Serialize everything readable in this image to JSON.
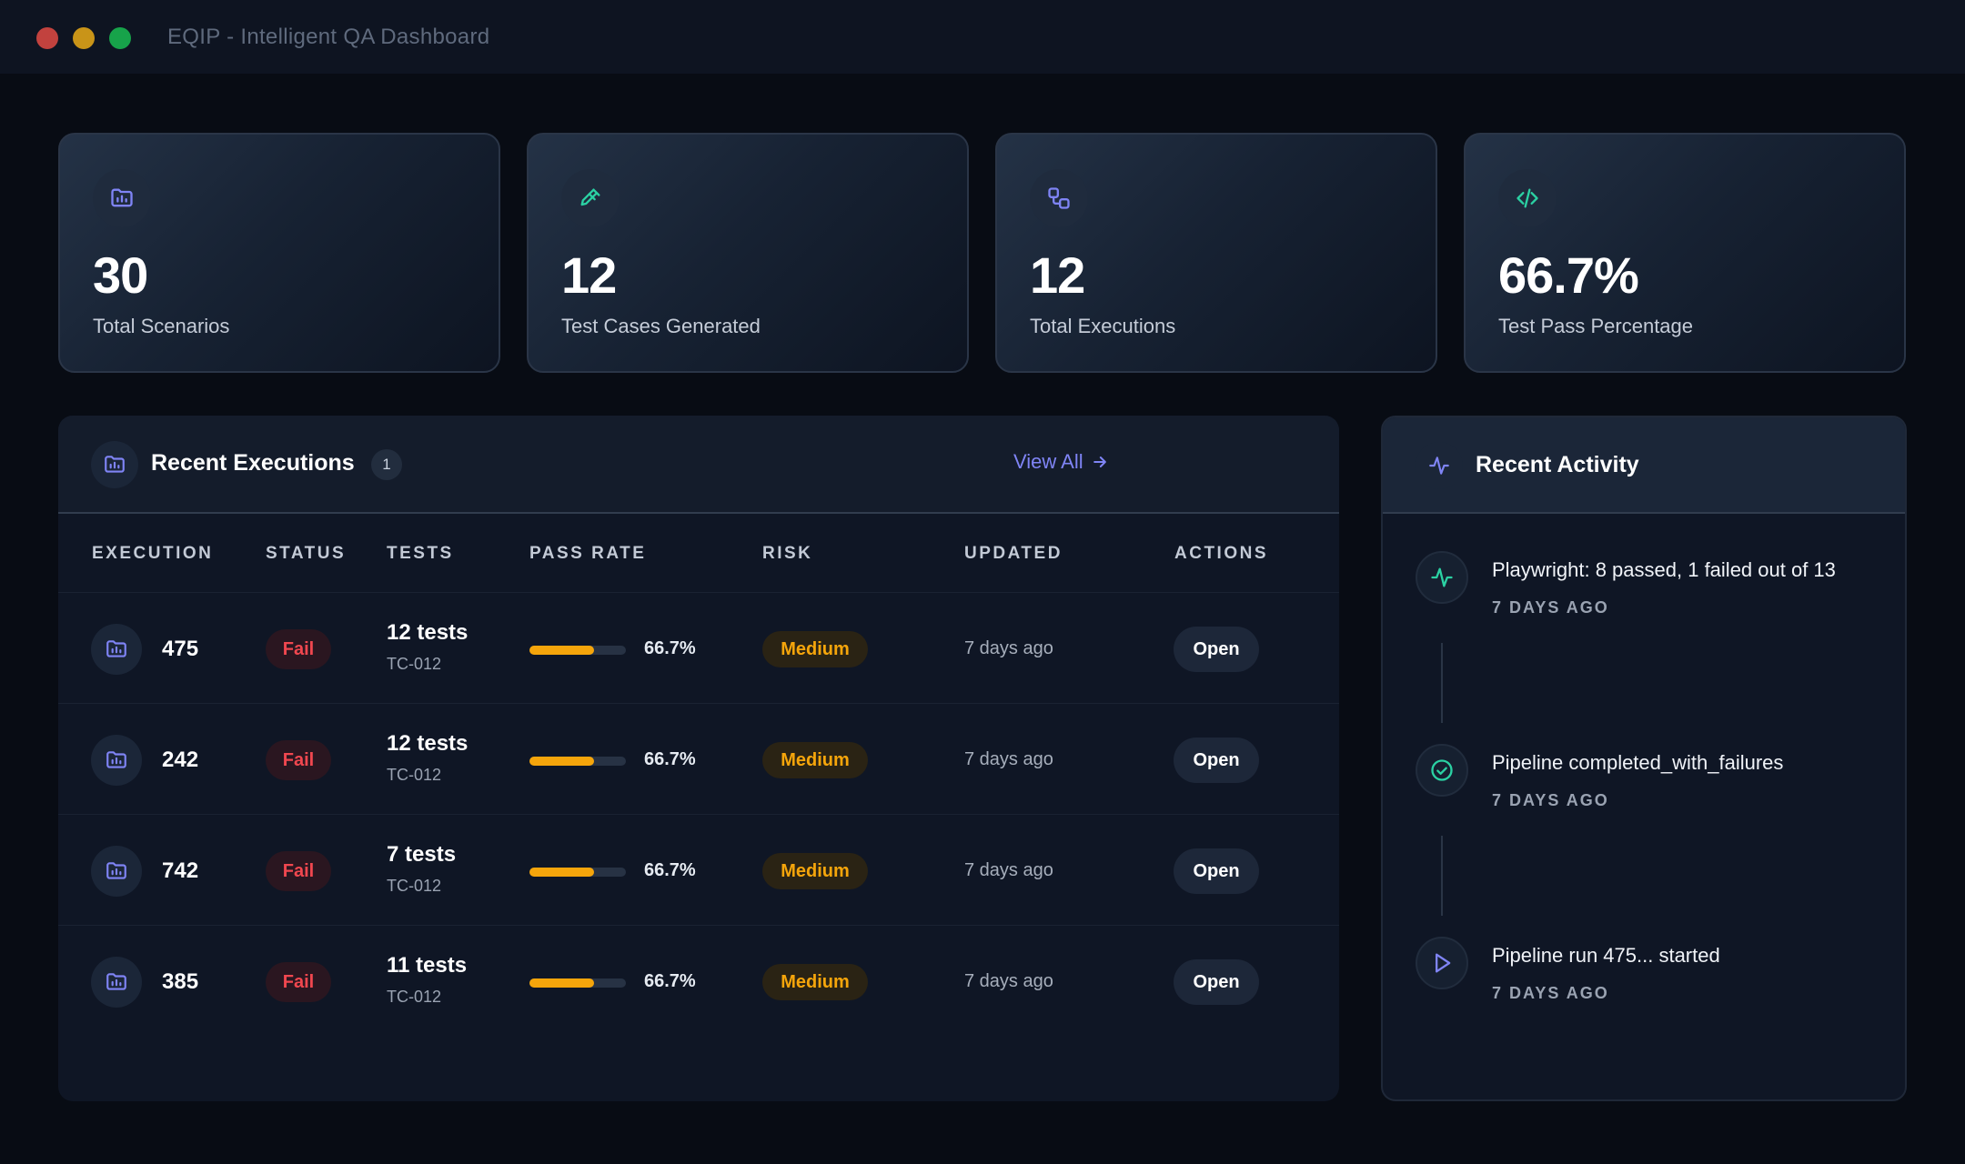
{
  "window": {
    "title": "EQIP - Intelligent QA Dashboard"
  },
  "stats": [
    {
      "value": "30",
      "label": "Total Scenarios",
      "icon": "folder-chart-icon",
      "color": "#7f84f5"
    },
    {
      "value": "12",
      "label": "Test Cases Generated",
      "icon": "pipette-icon",
      "color": "#2bd1a3"
    },
    {
      "value": "12",
      "label": "Total Executions",
      "icon": "workflow-icon",
      "color": "#7f84f5"
    },
    {
      "value": "66.7%",
      "label": "Test Pass Percentage",
      "icon": "code-icon",
      "color": "#2bd1a3"
    }
  ],
  "executions": {
    "title": "Recent Executions",
    "count": "1",
    "view_all": "View All",
    "columns": [
      "EXECUTION",
      "STATUS",
      "TESTS",
      "PASS RATE",
      "RISK",
      "UPDATED",
      "ACTIONS"
    ],
    "rows": [
      {
        "id": "475",
        "status": "Fail",
        "tests": "12 tests",
        "tc": "TC-012",
        "pass_rate": "66.7%",
        "risk": "Medium",
        "updated": "7 days ago",
        "action": "Open"
      },
      {
        "id": "242",
        "status": "Fail",
        "tests": "12 tests",
        "tc": "TC-012",
        "pass_rate": "66.7%",
        "risk": "Medium",
        "updated": "7 days ago",
        "action": "Open"
      },
      {
        "id": "742",
        "status": "Fail",
        "tests": "7 tests",
        "tc": "TC-012",
        "pass_rate": "66.7%",
        "risk": "Medium",
        "updated": "7 days ago",
        "action": "Open"
      },
      {
        "id": "385",
        "status": "Fail",
        "tests": "11 tests",
        "tc": "TC-012",
        "pass_rate": "66.7%",
        "risk": "Medium",
        "updated": "7 days ago",
        "action": "Open"
      }
    ]
  },
  "activity": {
    "title": "Recent Activity",
    "items": [
      {
        "text": "Playwright: 8 passed, 1 failed out of 13",
        "time": "7 DAYS AGO",
        "icon": "activity-icon",
        "color": "#2bd1a3"
      },
      {
        "text": "Pipeline completed_with_failures",
        "time": "7 DAYS AGO",
        "icon": "check-circle-icon",
        "color": "#2bd1a3"
      },
      {
        "text": "Pipeline run 475... started",
        "time": "7 DAYS AGO",
        "icon": "play-icon",
        "color": "#7f84f5"
      }
    ]
  },
  "colors": {
    "accent": "#7f84f5",
    "teal": "#2bd1a3",
    "fail": "#f0474f",
    "warning": "#f5a50b"
  }
}
